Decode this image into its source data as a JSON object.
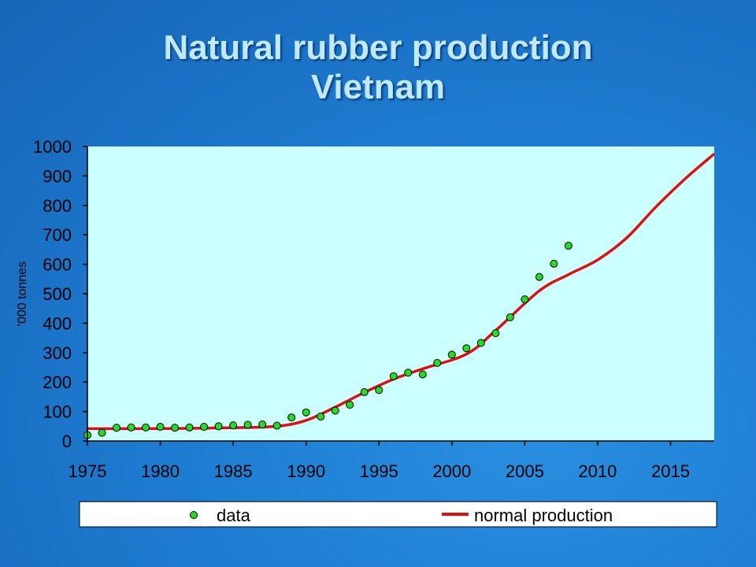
{
  "title_line1": "Natural rubber production",
  "title_line2": "Vietnam",
  "chart_data": {
    "type": "line",
    "ylabel": "'000 tonnes",
    "xlim": [
      1975,
      2018
    ],
    "ylim": [
      0,
      1000
    ],
    "x_ticks": [
      1975,
      1980,
      1985,
      1990,
      1995,
      2000,
      2005,
      2010,
      2015
    ],
    "y_ticks": [
      0,
      100,
      200,
      300,
      400,
      500,
      600,
      700,
      800,
      900,
      1000
    ],
    "legend_position": "bottom",
    "series": [
      {
        "name": "data",
        "kind": "scatter",
        "color": "#22dd22",
        "points": [
          [
            1975,
            20
          ],
          [
            1976,
            28
          ],
          [
            1977,
            45
          ],
          [
            1978,
            46
          ],
          [
            1979,
            46
          ],
          [
            1980,
            48
          ],
          [
            1981,
            45
          ],
          [
            1982,
            46
          ],
          [
            1983,
            48
          ],
          [
            1984,
            50
          ],
          [
            1985,
            53
          ],
          [
            1986,
            55
          ],
          [
            1987,
            56
          ],
          [
            1988,
            52
          ],
          [
            1989,
            80
          ],
          [
            1990,
            97
          ],
          [
            1991,
            83
          ],
          [
            1992,
            103
          ],
          [
            1993,
            123
          ],
          [
            1994,
            166
          ],
          [
            1995,
            173
          ],
          [
            1996,
            220
          ],
          [
            1997,
            232
          ],
          [
            1998,
            226
          ],
          [
            1999,
            265
          ],
          [
            2000,
            293
          ],
          [
            2001,
            315
          ],
          [
            2002,
            333
          ],
          [
            2003,
            366
          ],
          [
            2004,
            420
          ],
          [
            2005,
            481
          ],
          [
            2006,
            557
          ],
          [
            2007,
            602
          ],
          [
            2008,
            663
          ]
        ]
      },
      {
        "name": "normal production",
        "kind": "line",
        "color": "#dd1111",
        "points": [
          [
            1975,
            42
          ],
          [
            1980,
            42
          ],
          [
            1985,
            45
          ],
          [
            1988,
            50
          ],
          [
            1990,
            70
          ],
          [
            1992,
            115
          ],
          [
            1994,
            165
          ],
          [
            1996,
            210
          ],
          [
            1998,
            245
          ],
          [
            2001,
            295
          ],
          [
            2003,
            375
          ],
          [
            2006,
            510
          ],
          [
            2008,
            565
          ],
          [
            2010,
            615
          ],
          [
            2012,
            690
          ],
          [
            2014,
            795
          ],
          [
            2016,
            890
          ],
          [
            2018,
            975
          ]
        ]
      }
    ]
  }
}
